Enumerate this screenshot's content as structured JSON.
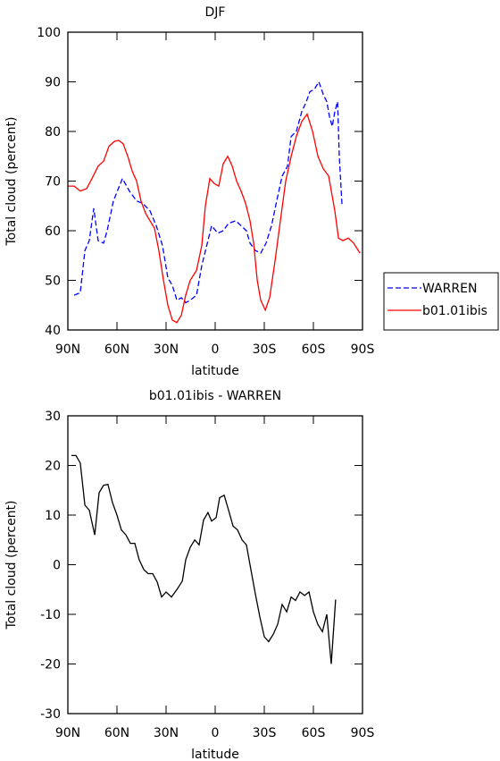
{
  "chart_data": [
    {
      "type": "line",
      "title": "DJF",
      "xlabel": "latitude",
      "ylabel": "Total cloud (percent)",
      "xlim": [
        90,
        -90
      ],
      "ylim": [
        40,
        100
      ],
      "xticks": [
        {
          "value": 90,
          "label": "90N"
        },
        {
          "value": 60,
          "label": "60N"
        },
        {
          "value": 30,
          "label": "30N"
        },
        0,
        {
          "value": -30,
          "label": "30S"
        },
        {
          "value": -60,
          "label": "60S"
        },
        {
          "value": -90,
          "label": "90S"
        }
      ],
      "yticks": [
        40,
        50,
        60,
        70,
        80,
        90,
        100
      ],
      "legend": "outside-right",
      "series": [
        {
          "name": "WARREN",
          "color": "#0000ff",
          "line_style": "dashed",
          "x": [
            86.2,
            82.4,
            79.6,
            76.9,
            74.2,
            71.5,
            68.2,
            66,
            62.2,
            56.7,
            52.4,
            48,
            44.2,
            39.8,
            36,
            32.2,
            28.9,
            26.2,
            23.4,
            20.7,
            18,
            15.3,
            11.4,
            8.2,
            4.4,
            2.2,
            -1.6,
            -4.9,
            -8.2,
            -12.5,
            -15.8,
            -19.1,
            -21.3,
            -24.6,
            -27.8,
            -31.1,
            -34.4,
            -37.6,
            -40.9,
            -44.2,
            -46.4,
            -49.6,
            -52.9,
            -55.7,
            -57.8,
            -60.6,
            -63.3,
            -66,
            -68.2,
            -69.8,
            -71.5,
            -73.1,
            -74.8,
            -75.8,
            -77.5
          ],
          "values": [
            47,
            47.5,
            56,
            58,
            64.5,
            58,
            57.5,
            60,
            66,
            70.5,
            68,
            66,
            65.5,
            64,
            61,
            57,
            50.5,
            49,
            46,
            46.5,
            45.5,
            46,
            47,
            53,
            58,
            61,
            59.5,
            60,
            61.5,
            62,
            61,
            60,
            57.5,
            56,
            55.5,
            57.5,
            61,
            66,
            71,
            73,
            79,
            80,
            84,
            86,
            88,
            88.5,
            90,
            87.5,
            86,
            83,
            81,
            84,
            86,
            75,
            65
          ]
        },
        {
          "name": "b01.01ibis",
          "color": "#ff0000",
          "line_style": "solid",
          "x": [
            90,
            86.2,
            82.4,
            78.5,
            75.3,
            71.5,
            68.2,
            64.9,
            61.6,
            58.9,
            56.2,
            53.4,
            50.7,
            48,
            45.3,
            42.5,
            39.8,
            37.1,
            34.4,
            31.6,
            28.9,
            26.2,
            23.4,
            20.7,
            18,
            15.3,
            11.4,
            8.2,
            6,
            3.3,
            0.5,
            -2.2,
            -4.9,
            -7.7,
            -10.4,
            -13.1,
            -15.8,
            -18.6,
            -21.3,
            -23.5,
            -25.7,
            -27.8,
            -30.6,
            -33.3,
            -36.6,
            -39.8,
            -43.1,
            -46.4,
            -49.6,
            -52.9,
            -56.2,
            -59.5,
            -62.8,
            -66,
            -69.3,
            -71.5,
            -73.1,
            -75.3,
            -78,
            -81.3,
            -84.6,
            -88.4
          ],
          "values": [
            69,
            69,
            68,
            68.5,
            70.5,
            73,
            74,
            77,
            78,
            78.2,
            77.5,
            75,
            72,
            70,
            66,
            63.5,
            62,
            60.5,
            56,
            50,
            45,
            42,
            41.5,
            43,
            47,
            50,
            52,
            57,
            65,
            70.5,
            69.5,
            69,
            73.5,
            75,
            73,
            70,
            68,
            65.5,
            62,
            57.5,
            50,
            46,
            44,
            46.5,
            54,
            62,
            70,
            75,
            79,
            82,
            83.5,
            80,
            75,
            72.5,
            71,
            67,
            64,
            58.5,
            58,
            58.5,
            57.5,
            55.5
          ]
        }
      ]
    },
    {
      "type": "line",
      "title": "b01.01ibis - WARREN",
      "xlabel": "latitude",
      "ylabel": "Total cloud (percent)",
      "xlim": [
        90,
        -90
      ],
      "ylim": [
        -30,
        30
      ],
      "xticks": [
        {
          "value": 90,
          "label": "90N"
        },
        {
          "value": 60,
          "label": "60N"
        },
        {
          "value": 30,
          "label": "30N"
        },
        0,
        {
          "value": -30,
          "label": "30S"
        },
        {
          "value": -60,
          "label": "60S"
        },
        {
          "value": -90,
          "label": "90S"
        }
      ],
      "yticks": [
        -30,
        -20,
        -10,
        0,
        10,
        20,
        30
      ],
      "series": [
        {
          "color": "#000000",
          "line_style": "solid",
          "x": [
            87.8,
            85.1,
            82.4,
            79.6,
            76.9,
            73.6,
            70.9,
            68.2,
            65.5,
            62.7,
            60,
            57.3,
            54.5,
            51.8,
            49.1,
            46.4,
            43.6,
            40.9,
            38.2,
            35.4,
            32.7,
            30,
            26.7,
            23.4,
            20.1,
            18,
            15.3,
            12.5,
            9.8,
            7.1,
            4.4,
            2.2,
            -0.6,
            -2.7,
            -5.5,
            -8.2,
            -10.9,
            -13.7,
            -16.4,
            -19.1,
            -21.8,
            -24.6,
            -27.3,
            -30,
            -32.7,
            -35.5,
            -38.2,
            -40.9,
            -43.7,
            -46.4,
            -49.1,
            -51.8,
            -54.6,
            -57.3,
            -60,
            -62.7,
            -65.5,
            -68.2,
            -70.9,
            -73.6
          ],
          "values": [
            22,
            22,
            20.5,
            12,
            11,
            6,
            14.5,
            16,
            16.2,
            12.5,
            10,
            7,
            6,
            4.3,
            4.3,
            1,
            -1,
            -1.8,
            -1.8,
            -3.5,
            -6.5,
            -5.5,
            -6.5,
            -5,
            -3.3,
            1,
            3.5,
            5,
            4,
            9,
            10.5,
            8.8,
            9.5,
            13.5,
            14,
            11,
            7.8,
            7,
            5,
            4,
            -1,
            -6,
            -10.5,
            -14.5,
            -15.5,
            -14,
            -12,
            -8,
            -9.5,
            -6.5,
            -7.2,
            -5.5,
            -6.2,
            -5.5,
            -9.5,
            -12,
            -13.5,
            -10,
            -20,
            -7
          ]
        }
      ]
    }
  ]
}
